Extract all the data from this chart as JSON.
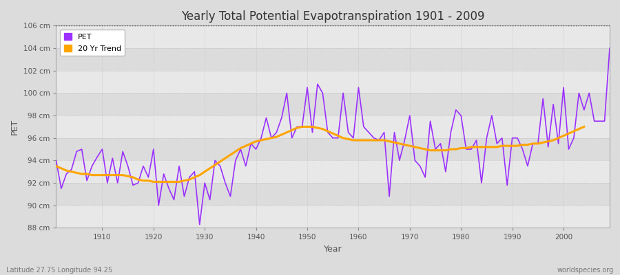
{
  "title": "Yearly Total Potential Evapotranspiration 1901 - 2009",
  "xlabel": "Year",
  "ylabel": "PET",
  "footnote_left": "Latitude 27.75 Longitude 94.25",
  "footnote_right": "worldspecies.org",
  "ylim": [
    88,
    106
  ],
  "ytick_labels": [
    "88 cm",
    "90 cm",
    "92 cm",
    "94 cm",
    "96 cm",
    "98 cm",
    "100 cm",
    "102 cm",
    "104 cm",
    "106 cm"
  ],
  "ytick_values": [
    88,
    90,
    92,
    94,
    96,
    98,
    100,
    102,
    104,
    106
  ],
  "xlim": [
    1901,
    2009
  ],
  "pet_color": "#9B30FF",
  "trend_color": "#FFA500",
  "bg_color": "#DCDCDC",
  "plot_bg_color": "#E4E4E4",
  "band_light": "#E8E8E8",
  "band_dark": "#DCDCDC",
  "legend_labels": [
    "PET",
    "20 Yr Trend"
  ],
  "xticks": [
    1910,
    1920,
    1930,
    1940,
    1950,
    1960,
    1970,
    1980,
    1990,
    2000
  ],
  "years": [
    1901,
    1902,
    1903,
    1904,
    1905,
    1906,
    1907,
    1908,
    1909,
    1910,
    1911,
    1912,
    1913,
    1914,
    1915,
    1916,
    1917,
    1918,
    1919,
    1920,
    1921,
    1922,
    1923,
    1924,
    1925,
    1926,
    1927,
    1928,
    1929,
    1930,
    1931,
    1932,
    1933,
    1934,
    1935,
    1936,
    1937,
    1938,
    1939,
    1940,
    1941,
    1942,
    1943,
    1944,
    1945,
    1946,
    1947,
    1948,
    1949,
    1950,
    1951,
    1952,
    1953,
    1954,
    1955,
    1956,
    1957,
    1958,
    1959,
    1960,
    1961,
    1962,
    1963,
    1964,
    1965,
    1966,
    1967,
    1968,
    1969,
    1970,
    1971,
    1972,
    1973,
    1974,
    1975,
    1976,
    1977,
    1978,
    1979,
    1980,
    1981,
    1982,
    1983,
    1984,
    1985,
    1986,
    1987,
    1988,
    1989,
    1990,
    1991,
    1992,
    1993,
    1994,
    1995,
    1996,
    1997,
    1998,
    1999,
    2000,
    2001,
    2002,
    2003,
    2004,
    2005,
    2006,
    2007,
    2008,
    2009
  ],
  "pet_values": [
    94.0,
    91.5,
    92.8,
    93.2,
    94.8,
    95.0,
    92.2,
    93.5,
    94.3,
    95.0,
    92.0,
    94.2,
    92.0,
    94.8,
    93.5,
    91.8,
    92.0,
    93.5,
    92.5,
    95.0,
    90.0,
    92.8,
    91.5,
    90.5,
    93.5,
    90.8,
    92.5,
    93.0,
    88.3,
    92.0,
    90.5,
    94.0,
    93.5,
    92.0,
    90.8,
    94.0,
    95.0,
    93.5,
    95.5,
    95.0,
    96.0,
    97.8,
    96.0,
    96.5,
    97.8,
    100.0,
    96.0,
    97.0,
    97.0,
    100.5,
    96.5,
    100.8,
    100.0,
    96.5,
    96.0,
    96.0,
    100.0,
    96.5,
    96.0,
    100.5,
    97.0,
    96.5,
    96.0,
    95.8,
    96.5,
    90.8,
    96.5,
    94.0,
    95.8,
    98.0,
    94.0,
    93.5,
    92.5,
    97.5,
    95.0,
    95.5,
    93.0,
    96.5,
    98.5,
    98.0,
    95.0,
    95.0,
    95.8,
    92.0,
    96.0,
    98.0,
    95.5,
    96.0,
    91.8,
    96.0,
    96.0,
    95.0,
    93.5,
    95.5,
    95.5,
    99.5,
    95.2,
    99.0,
    95.5,
    100.5,
    95.0,
    96.0,
    100.0,
    98.5,
    100.0,
    97.5,
    97.5,
    97.5,
    104.0
  ],
  "trend_values": [
    93.5,
    93.3,
    93.1,
    93.0,
    92.9,
    92.8,
    92.8,
    92.7,
    92.7,
    92.7,
    92.7,
    92.7,
    92.7,
    92.7,
    92.6,
    92.5,
    92.3,
    92.2,
    92.2,
    92.1,
    92.1,
    92.1,
    92.1,
    92.1,
    92.1,
    92.2,
    92.3,
    92.5,
    92.7,
    93.0,
    93.3,
    93.6,
    93.9,
    94.2,
    94.5,
    94.8,
    95.1,
    95.3,
    95.5,
    95.7,
    95.8,
    95.9,
    96.0,
    96.1,
    96.3,
    96.5,
    96.7,
    96.9,
    97.0,
    97.0,
    97.0,
    96.9,
    96.8,
    96.6,
    96.4,
    96.2,
    96.0,
    95.9,
    95.8,
    95.8,
    95.8,
    95.8,
    95.8,
    95.8,
    95.8,
    95.7,
    95.6,
    95.5,
    95.4,
    95.3,
    95.2,
    95.1,
    95.0,
    94.9,
    94.9,
    94.9,
    94.9,
    95.0,
    95.0,
    95.1,
    95.1,
    95.2,
    95.2,
    95.2,
    95.2,
    95.2,
    95.2,
    95.3,
    95.3,
    95.3,
    95.3,
    95.4,
    95.4,
    95.5,
    95.5,
    95.6,
    95.7,
    95.8,
    96.0,
    96.2,
    96.4,
    96.6,
    96.8,
    97.0,
    null,
    null,
    null,
    null,
    null,
    null
  ]
}
